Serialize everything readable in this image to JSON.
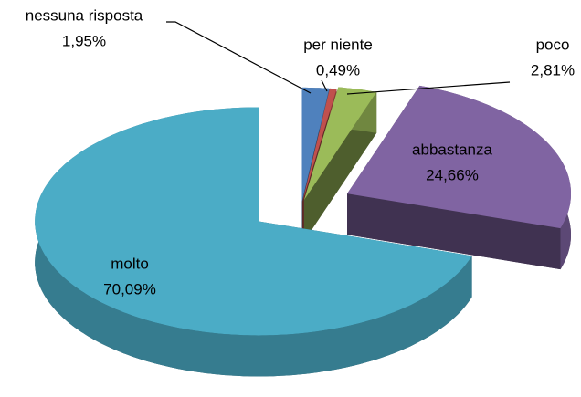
{
  "chart_data": {
    "type": "pie3d",
    "categories": [
      "nessuna risposta",
      "per niente",
      "poco",
      "abbastanza",
      "molto"
    ],
    "values": [
      1.95,
      0.49,
      2.81,
      24.66,
      70.09
    ],
    "value_labels": [
      "1,95%",
      "0,49%",
      "2,81%",
      "24,66%",
      "70,09%"
    ],
    "colors": [
      "#4f81bd",
      "#c0504d",
      "#9bbb59",
      "#8064a2",
      "#4bacc6"
    ]
  }
}
